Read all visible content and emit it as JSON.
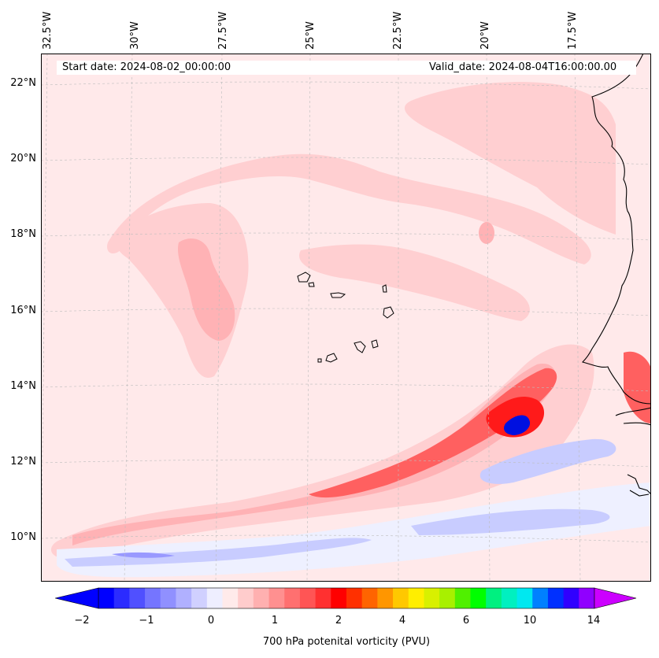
{
  "header": {
    "start_date": "Start date: 2024-08-02_00:00:00",
    "valid_date": "Valid_date: 2024-08-04T16:00:00.00"
  },
  "axes": {
    "longitude_labels": [
      "32.5°W",
      "30°W",
      "27.5°W",
      "25°W",
      "22.5°W",
      "20°W",
      "17.5°W"
    ],
    "latitude_labels": [
      "22°N",
      "20°N",
      "18°N",
      "16°N",
      "14°N",
      "12°N",
      "10°N"
    ]
  },
  "colorbar": {
    "label": "700 hPa potenital vorticity (PVU)",
    "tick_labels": [
      "−2",
      "−1",
      "0",
      "1",
      "2",
      "4",
      "6",
      "10",
      "14"
    ],
    "colors": [
      "#0000ff",
      "#2b2bff",
      "#5050ff",
      "#7575ff",
      "#9090ff",
      "#b0b0ff",
      "#d0d0ff",
      "#eeeeff",
      "#ffeaea",
      "#ffcccc",
      "#ffb0b0",
      "#ff9090",
      "#ff7070",
      "#ff5555",
      "#ff3030",
      "#ff0000",
      "#ff3000",
      "#ff6400",
      "#ff9600",
      "#ffc800",
      "#ffee00",
      "#d8f000",
      "#a8f000",
      "#50f000",
      "#00ff00",
      "#00f080",
      "#00f0c0",
      "#00e8f0",
      "#0080ff",
      "#0030ff",
      "#3000ff",
      "#9000ff"
    ],
    "extend_low_color": "#0000ff",
    "extend_high_color": "#cc00ff"
  },
  "colors": {
    "background_pv": "#ffe9ea",
    "light_red": "#ffcfd1",
    "mid_red": "#ffb2b5",
    "strong_red": "#ff6060",
    "max_red": "#ff1a1a",
    "light_blue": "#eef0ff",
    "mid_blue": "#c8ccff",
    "strong_blue": "#9999ff",
    "min_blue": "#0010e0",
    "coastline": "#000000"
  }
}
